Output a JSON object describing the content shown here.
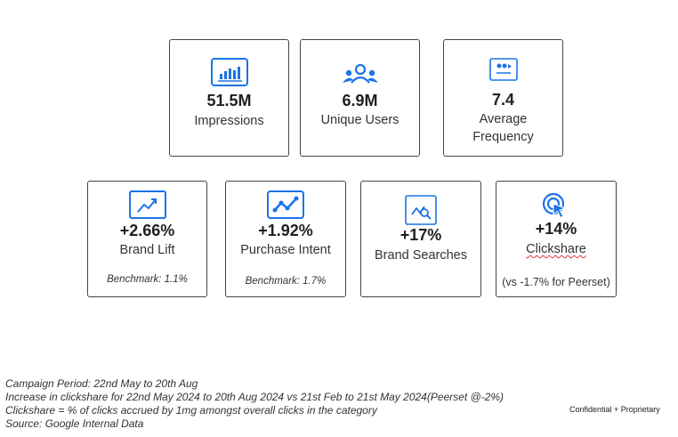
{
  "metrics_top": [
    {
      "value": "51.5M",
      "label": "Impressions",
      "icon": "chart-icon"
    },
    {
      "value": "6.9M",
      "label": "Unique Users",
      "icon": "users-icon"
    },
    {
      "value": "7.4",
      "label_line1": "Average",
      "label_line2": "Frequency",
      "icon": "frequency-icon"
    }
  ],
  "metrics_bottom": [
    {
      "value": "+2.66%",
      "label": "Brand Lift",
      "benchmark": "Benchmark: 1.1%",
      "icon": "trend-up-icon"
    },
    {
      "value": "+1.92%",
      "label": "Purchase Intent",
      "benchmark": "Benchmark: 1.7%",
      "icon": "line-chart-icon"
    },
    {
      "value": "+17%",
      "label": "Brand Searches",
      "icon": "search-chart-icon"
    },
    {
      "value": "+14%",
      "label": "Clickshare",
      "note": "(vs -1.7% for Peerset)",
      "icon": "click-icon"
    }
  ],
  "footnotes": {
    "line1": "Campaign Period: 22nd May to 20th Aug",
    "line2": "Increase in clickshare for 22nd May 2024 to 20th Aug 2024 vs 21st Feb to 21st May 2024(Peerset @-2%)",
    "line3": "Clickshare  = % of clicks accrued by 1mg amongst overall clicks in the category",
    "line4": "Source: Google Internal Data"
  },
  "confidential": "Confidential + Proprietary",
  "colors": {
    "accent": "#1a73e8",
    "border": "#444444"
  }
}
